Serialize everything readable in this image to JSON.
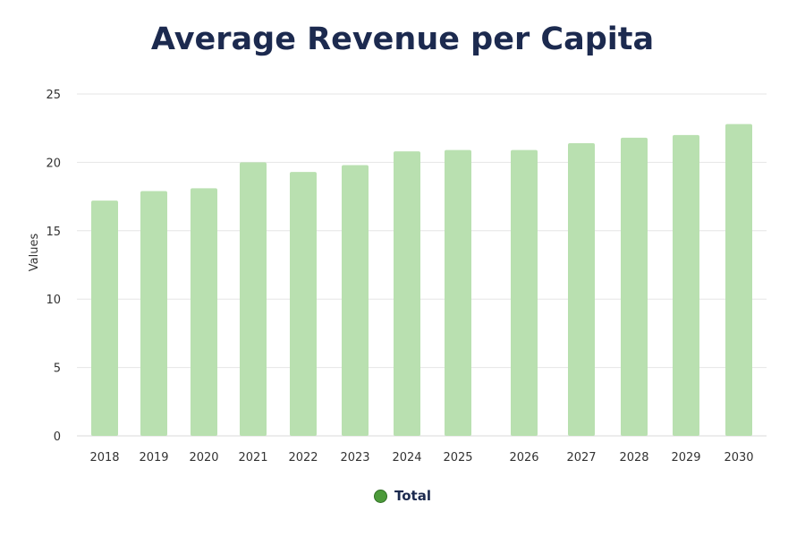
{
  "chart_data": {
    "type": "bar",
    "title": "Average Revenue per Capita",
    "xlabel": "",
    "ylabel": "Values",
    "ylim": [
      0,
      25
    ],
    "yticks": [
      0,
      5,
      10,
      15,
      20,
      25
    ],
    "grid": true,
    "legend_placement": "bottom",
    "categories": [
      "2018",
      "2019",
      "2020",
      "2021",
      "2022",
      "2023",
      "2024",
      "2025",
      "2026",
      "2027",
      "2028",
      "2029",
      "2030"
    ],
    "series": [
      {
        "name": "Total",
        "values": [
          17.2,
          17.9,
          18.1,
          20.0,
          19.3,
          19.8,
          20.8,
          20.9,
          20.9,
          21.4,
          21.8,
          22.0,
          22.8
        ]
      }
    ],
    "colors": {
      "bar": "#b9e0b0",
      "legend_marker": "#4c9a3a",
      "title": "#1c2a4f",
      "grid": "#e6e6e6"
    }
  }
}
